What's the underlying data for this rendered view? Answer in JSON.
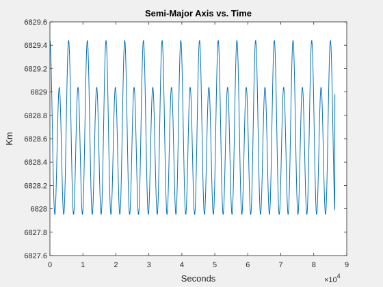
{
  "chart_data": {
    "type": "line",
    "title": "Semi-Major Axis vs. Time",
    "xlabel": "Seconds",
    "ylabel": "Km",
    "xlim": [
      0,
      90000
    ],
    "ylim": [
      6827.6,
      6829.6
    ],
    "x_ticks": [
      0,
      10000,
      20000,
      30000,
      40000,
      50000,
      60000,
      70000,
      80000,
      90000
    ],
    "x_tick_labels": [
      "0",
      "1",
      "2",
      "3",
      "4",
      "5",
      "6",
      "7",
      "8",
      "9"
    ],
    "x_exponent_label": "×10",
    "x_exponent_power": "4",
    "y_ticks": [
      6827.6,
      6827.8,
      6828,
      6828.2,
      6828.4,
      6828.6,
      6828.8,
      6829,
      6829.2,
      6829.4,
      6829.6
    ],
    "y_tick_labels": [
      "6827.6",
      "6827.8",
      "6828",
      "6828.2",
      "6828.4",
      "6828.6",
      "6828.8",
      "6829",
      "6829.2",
      "6829.4",
      "6829.6"
    ],
    "grid": false,
    "series": [
      {
        "color": "#0072BD",
        "x_start": 0,
        "x_end": 86400,
        "orbit_period_s": 5670,
        "mean_km": 6828.6,
        "first_harmonic_amplitude_km": 0.2,
        "second_harmonic_amplitude_km": 0.64,
        "observed_peaks_km": [
          6829.43,
          6829.1
        ],
        "observed_troughs_km": [
          6827.76,
          6827.98
        ],
        "final_value_km": 6828.98
      }
    ]
  }
}
